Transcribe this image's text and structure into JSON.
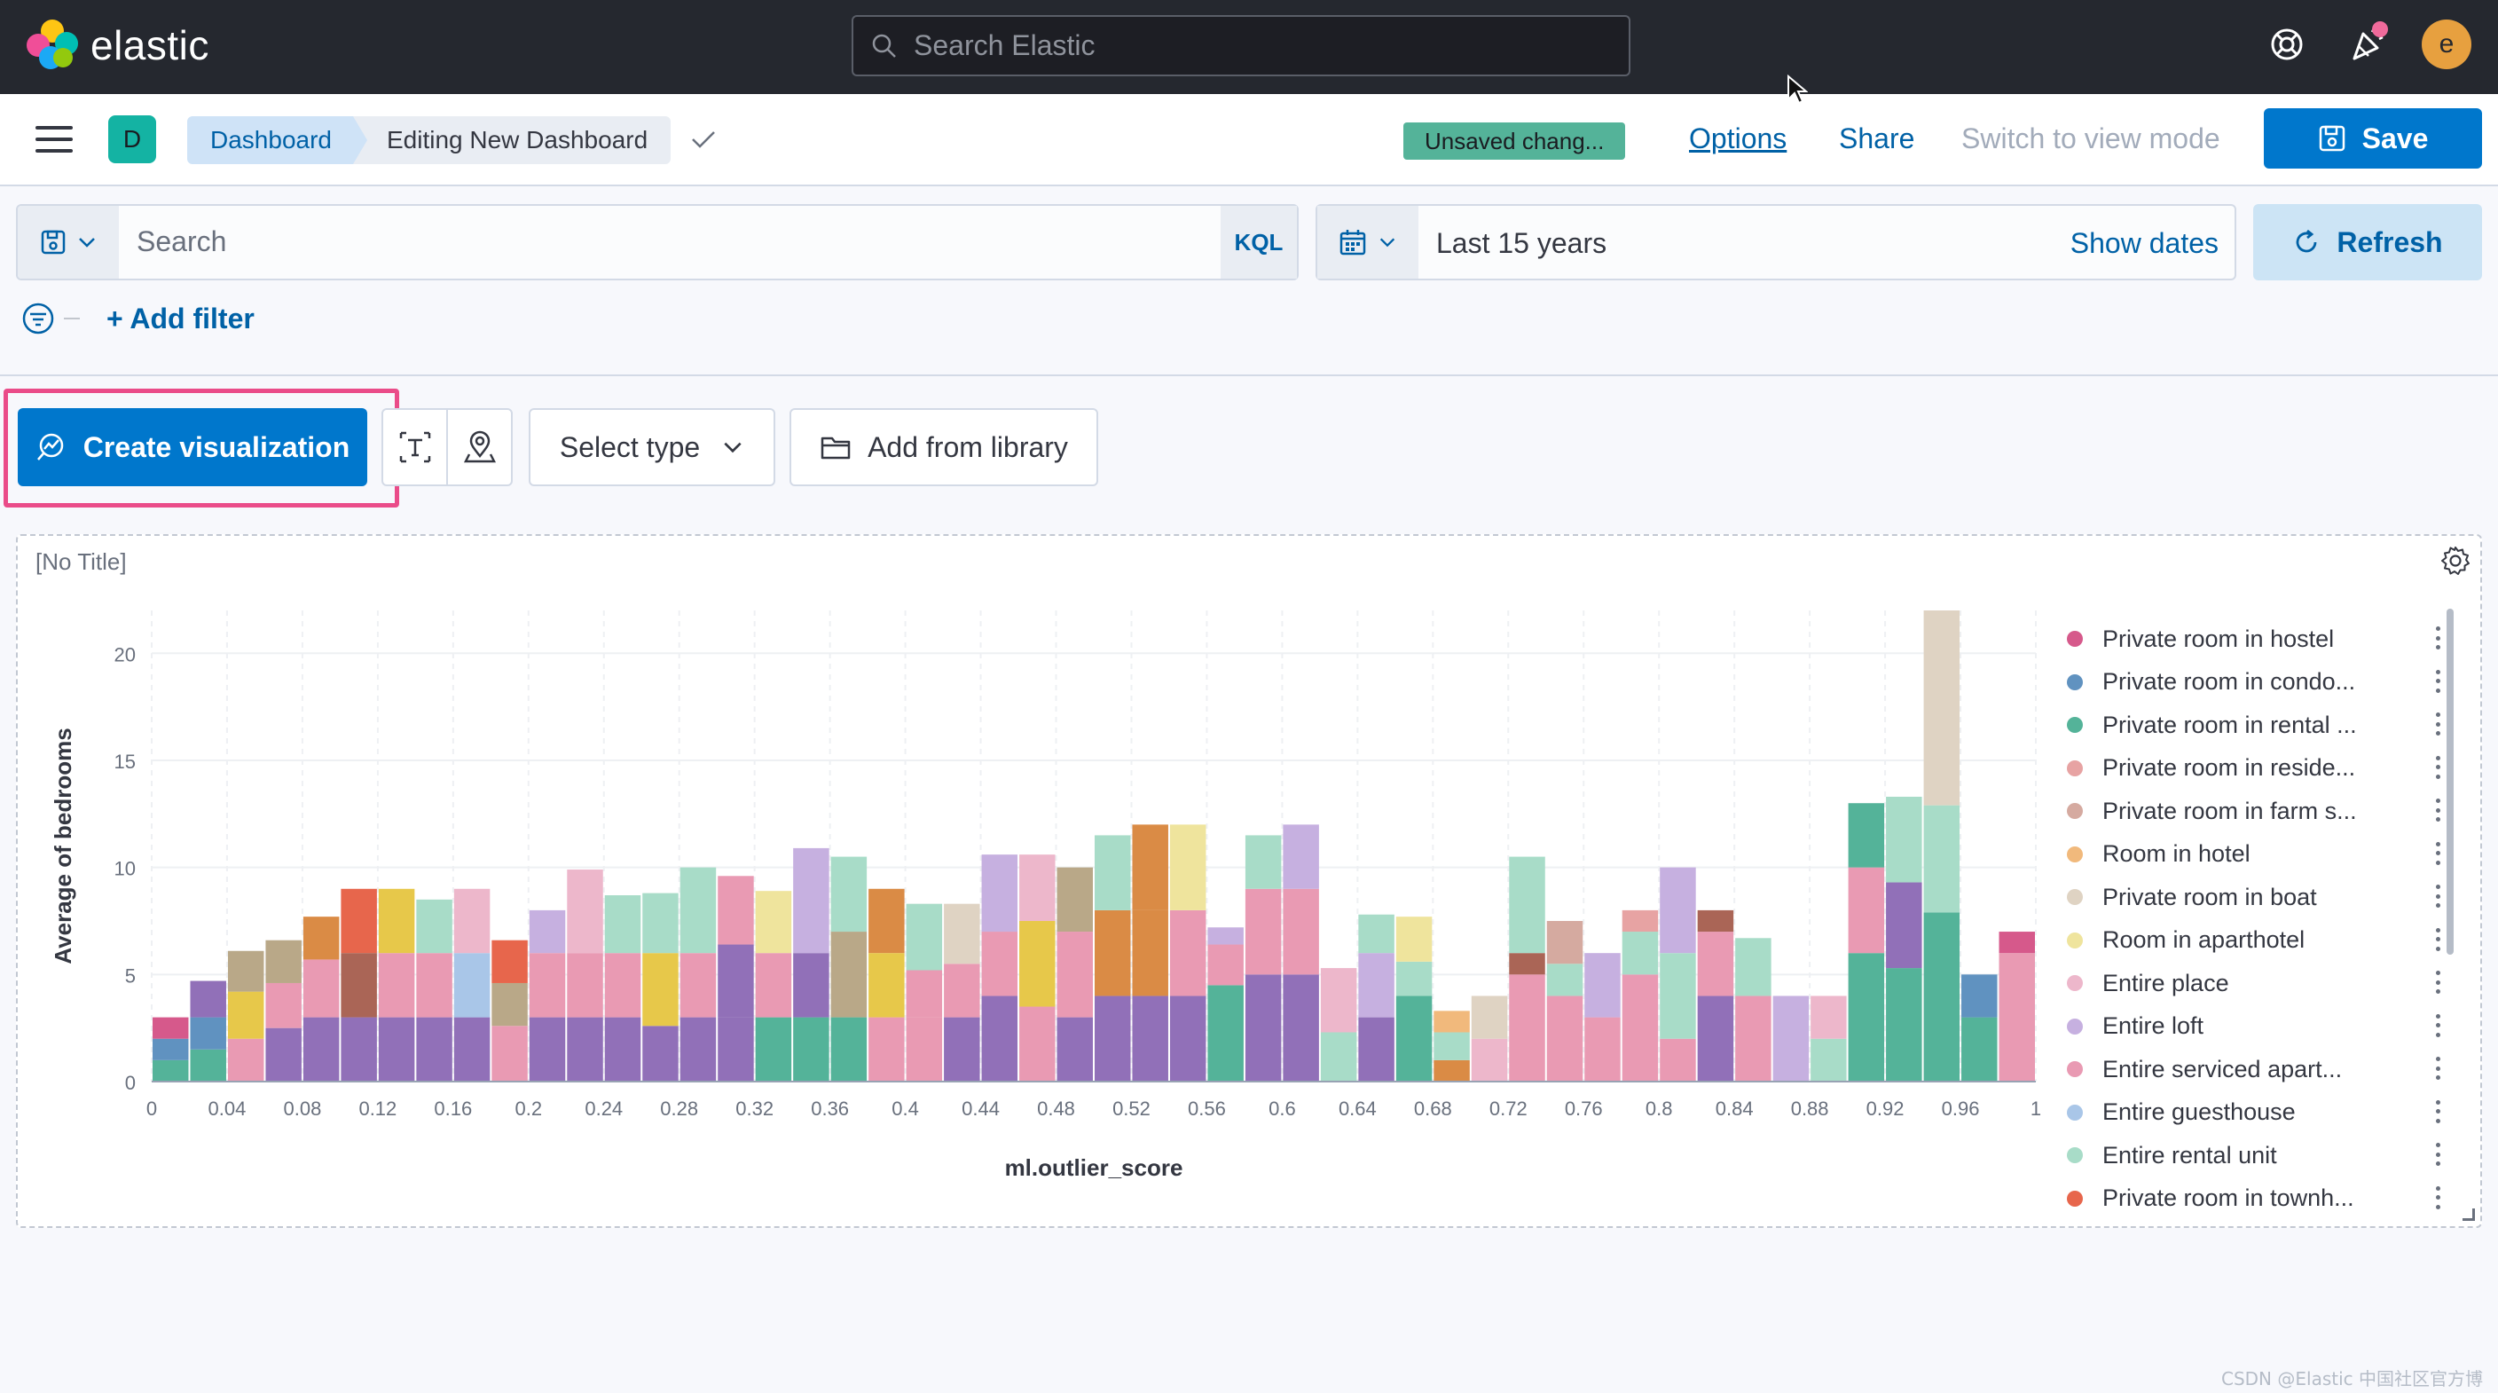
{
  "app": {
    "logo_text": "elastic",
    "search_placeholder": "Search Elastic",
    "avatar_letter": "e"
  },
  "header": {
    "space_letter": "D",
    "breadcrumbs": [
      "Dashboard",
      "Editing New Dashboard"
    ],
    "unsaved_badge": "Unsaved chang...",
    "options": "Options",
    "share": "Share",
    "switch_mode": "Switch to view mode",
    "save": "Save"
  },
  "query": {
    "placeholder": "Search",
    "language": "KQL",
    "time_range": "Last 15 years",
    "show_dates": "Show dates",
    "refresh": "Refresh",
    "add_filter": "+ Add filter"
  },
  "toolbar": {
    "create_visualization": "Create visualization",
    "select_type": "Select type",
    "add_from_library": "Add from library"
  },
  "panel": {
    "title": "[No Title]"
  },
  "legend": [
    {
      "label": "Private room in hostel",
      "color": "#d6598b"
    },
    {
      "label": "Private room in condo...",
      "color": "#6092c0"
    },
    {
      "label": "Private room in rental ...",
      "color": "#54b399"
    },
    {
      "label": "Private room in reside...",
      "color": "#e7a3a3"
    },
    {
      "label": "Private room in farm s...",
      "color": "#d5aaa0"
    },
    {
      "label": "Room in hotel",
      "color": "#f1b97c"
    },
    {
      "label": "Private room in boat",
      "color": "#dfd3c3"
    },
    {
      "label": "Room in aparthotel",
      "color": "#efe49d"
    },
    {
      "label": "Entire place",
      "color": "#edb7cb"
    },
    {
      "label": "Entire loft",
      "color": "#c6b0e0"
    },
    {
      "label": "Entire serviced apart...",
      "color": "#e99ab3"
    },
    {
      "label": "Entire guesthouse",
      "color": "#a9c6e8"
    },
    {
      "label": "Entire rental unit",
      "color": "#a8dcc8"
    },
    {
      "label": "Private room in townh...",
      "color": "#e7664c"
    }
  ],
  "watermark": "CSDN @Elastic 中国社区官方博客",
  "chart_data": {
    "type": "bar",
    "stacked": true,
    "xlabel": "ml.outlier_score",
    "ylabel": "Average of bedrooms",
    "xlim": [
      0,
      1
    ],
    "ylim": [
      0,
      22
    ],
    "x_ticks": [
      "0",
      "0.04",
      "0.08",
      "0.12",
      "0.16",
      "0.2",
      "0.24",
      "0.28",
      "0.32",
      "0.36",
      "0.4",
      "0.44",
      "0.48",
      "0.52",
      "0.56",
      "0.6",
      "0.64",
      "0.68",
      "0.72",
      "0.76",
      "0.8",
      "0.84",
      "0.88",
      "0.92",
      "0.96",
      "1"
    ],
    "y_ticks": [
      0,
      5,
      10,
      15,
      20
    ],
    "bin_width": 0.02,
    "bins": [
      {
        "x": 0.0,
        "segments": [
          {
            "v": 1,
            "c": "#54b399"
          },
          {
            "v": 1,
            "c": "#6092c0"
          },
          {
            "v": 1,
            "c": "#d6598b"
          }
        ]
      },
      {
        "x": 0.02,
        "segments": [
          {
            "v": 1.5,
            "c": "#54b399"
          },
          {
            "v": 1.5,
            "c": "#6092c0"
          },
          {
            "v": 1.7,
            "c": "#9170b8"
          }
        ]
      },
      {
        "x": 0.04,
        "segments": [
          {
            "v": 2,
            "c": "#e99ab3"
          },
          {
            "v": 2.2,
            "c": "#e7c84a"
          },
          {
            "v": 1.9,
            "c": "#b9a888"
          }
        ]
      },
      {
        "x": 0.06,
        "segments": [
          {
            "v": 2.5,
            "c": "#9170b8"
          },
          {
            "v": 2.1,
            "c": "#e99ab3"
          },
          {
            "v": 2,
            "c": "#b9a888"
          }
        ]
      },
      {
        "x": 0.08,
        "segments": [
          {
            "v": 3,
            "c": "#9170b8"
          },
          {
            "v": 2.7,
            "c": "#e99ab3"
          },
          {
            "v": 2,
            "c": "#da8b45"
          }
        ]
      },
      {
        "x": 0.1,
        "segments": [
          {
            "v": 3,
            "c": "#9170b8"
          },
          {
            "v": 3,
            "c": "#aa6556"
          },
          {
            "v": 3,
            "c": "#e7664c"
          }
        ]
      },
      {
        "x": 0.12,
        "segments": [
          {
            "v": 3,
            "c": "#9170b8"
          },
          {
            "v": 3,
            "c": "#e99ab3"
          },
          {
            "v": 3,
            "c": "#e7c84a"
          }
        ]
      },
      {
        "x": 0.14,
        "segments": [
          {
            "v": 3,
            "c": "#9170b8"
          },
          {
            "v": 3,
            "c": "#e99ab3"
          },
          {
            "v": 2.5,
            "c": "#a8dcc8"
          }
        ]
      },
      {
        "x": 0.16,
        "segments": [
          {
            "v": 3,
            "c": "#9170b8"
          },
          {
            "v": 3,
            "c": "#a9c6e8"
          },
          {
            "v": 3,
            "c": "#edb7cb"
          }
        ]
      },
      {
        "x": 0.18,
        "segments": [
          {
            "v": 2.6,
            "c": "#e99ab3"
          },
          {
            "v": 2,
            "c": "#b9a888"
          },
          {
            "v": 2,
            "c": "#e7664c"
          }
        ]
      },
      {
        "x": 0.2,
        "segments": [
          {
            "v": 3,
            "c": "#9170b8"
          },
          {
            "v": 3,
            "c": "#e99ab3"
          },
          {
            "v": 2,
            "c": "#c6b0e0"
          }
        ]
      },
      {
        "x": 0.22,
        "segments": [
          {
            "v": 3,
            "c": "#9170b8"
          },
          {
            "v": 3,
            "c": "#e99ab3"
          },
          {
            "v": 3.9,
            "c": "#edb7cb"
          }
        ]
      },
      {
        "x": 0.24,
        "segments": [
          {
            "v": 3,
            "c": "#9170b8"
          },
          {
            "v": 3,
            "c": "#e99ab3"
          },
          {
            "v": 2.7,
            "c": "#a8dcc8"
          }
        ]
      },
      {
        "x": 0.26,
        "segments": [
          {
            "v": 2.6,
            "c": "#9170b8"
          },
          {
            "v": 3.4,
            "c": "#e7c84a"
          },
          {
            "v": 2.8,
            "c": "#a8dcc8"
          }
        ]
      },
      {
        "x": 0.28,
        "segments": [
          {
            "v": 3,
            "c": "#9170b8"
          },
          {
            "v": 3,
            "c": "#e99ab3"
          },
          {
            "v": 4,
            "c": "#a8dcc8"
          }
        ]
      },
      {
        "x": 0.3,
        "segments": [
          {
            "v": 3,
            "c": "#9170b8"
          },
          {
            "v": 3.4,
            "c": "#9170b8"
          },
          {
            "v": 3.2,
            "c": "#e99ab3"
          }
        ]
      },
      {
        "x": 0.32,
        "segments": [
          {
            "v": 3,
            "c": "#54b399"
          },
          {
            "v": 3,
            "c": "#e99ab3"
          },
          {
            "v": 2.9,
            "c": "#efe49d"
          }
        ]
      },
      {
        "x": 0.34,
        "segments": [
          {
            "v": 3,
            "c": "#54b399"
          },
          {
            "v": 3,
            "c": "#9170b8"
          },
          {
            "v": 4.9,
            "c": "#c6b0e0"
          }
        ]
      },
      {
        "x": 0.36,
        "segments": [
          {
            "v": 3,
            "c": "#54b399"
          },
          {
            "v": 4,
            "c": "#b9a888"
          },
          {
            "v": 3.5,
            "c": "#a8dcc8"
          }
        ]
      },
      {
        "x": 0.38,
        "segments": [
          {
            "v": 3,
            "c": "#e99ab3"
          },
          {
            "v": 3,
            "c": "#e7c84a"
          },
          {
            "v": 3,
            "c": "#da8b45"
          }
        ]
      },
      {
        "x": 0.4,
        "segments": [
          {
            "v": 3,
            "c": "#e99ab3"
          },
          {
            "v": 2.2,
            "c": "#e99ab3"
          },
          {
            "v": 3.1,
            "c": "#a8dcc8"
          }
        ]
      },
      {
        "x": 0.42,
        "segments": [
          {
            "v": 3,
            "c": "#9170b8"
          },
          {
            "v": 2.5,
            "c": "#e99ab3"
          },
          {
            "v": 2.8,
            "c": "#dfd3c3"
          }
        ]
      },
      {
        "x": 0.44,
        "segments": [
          {
            "v": 4,
            "c": "#9170b8"
          },
          {
            "v": 3,
            "c": "#e99ab3"
          },
          {
            "v": 3.6,
            "c": "#c6b0e0"
          }
        ]
      },
      {
        "x": 0.46,
        "segments": [
          {
            "v": 3.5,
            "c": "#e99ab3"
          },
          {
            "v": 4,
            "c": "#e7c84a"
          },
          {
            "v": 3.1,
            "c": "#edb7cb"
          }
        ]
      },
      {
        "x": 0.48,
        "segments": [
          {
            "v": 3,
            "c": "#9170b8"
          },
          {
            "v": 4,
            "c": "#e99ab3"
          },
          {
            "v": 3,
            "c": "#b9a888"
          }
        ]
      },
      {
        "x": 0.5,
        "segments": [
          {
            "v": 4,
            "c": "#9170b8"
          },
          {
            "v": 4,
            "c": "#da8b45"
          },
          {
            "v": 3.5,
            "c": "#a8dcc8"
          }
        ]
      },
      {
        "x": 0.52,
        "segments": [
          {
            "v": 4,
            "c": "#9170b8"
          },
          {
            "v": 4,
            "c": "#da8b45"
          },
          {
            "v": 4,
            "c": "#da8b45"
          }
        ]
      },
      {
        "x": 0.54,
        "segments": [
          {
            "v": 4,
            "c": "#9170b8"
          },
          {
            "v": 4,
            "c": "#e99ab3"
          },
          {
            "v": 4,
            "c": "#efe49d"
          }
        ]
      },
      {
        "x": 0.56,
        "segments": [
          {
            "v": 4.5,
            "c": "#54b399"
          },
          {
            "v": 1.9,
            "c": "#e99ab3"
          },
          {
            "v": 0.8,
            "c": "#c6b0e0"
          }
        ]
      },
      {
        "x": 0.58,
        "segments": [
          {
            "v": 5,
            "c": "#9170b8"
          },
          {
            "v": 4,
            "c": "#e99ab3"
          },
          {
            "v": 2.5,
            "c": "#a8dcc8"
          }
        ]
      },
      {
        "x": 0.6,
        "segments": [
          {
            "v": 5,
            "c": "#9170b8"
          },
          {
            "v": 4,
            "c": "#e99ab3"
          },
          {
            "v": 3,
            "c": "#c6b0e0"
          }
        ]
      },
      {
        "x": 0.62,
        "segments": [
          {
            "v": 2.3,
            "c": "#a8dcc8"
          },
          {
            "v": 3,
            "c": "#edb7cb"
          }
        ]
      },
      {
        "x": 0.64,
        "segments": [
          {
            "v": 3,
            "c": "#9170b8"
          },
          {
            "v": 3,
            "c": "#c6b0e0"
          },
          {
            "v": 1.8,
            "c": "#a8dcc8"
          }
        ]
      },
      {
        "x": 0.66,
        "segments": [
          {
            "v": 4,
            "c": "#54b399"
          },
          {
            "v": 1.6,
            "c": "#a8dcc8"
          },
          {
            "v": 2.1,
            "c": "#efe49d"
          }
        ]
      },
      {
        "x": 0.68,
        "segments": [
          {
            "v": 1,
            "c": "#da8b45"
          },
          {
            "v": 1.3,
            "c": "#a8dcc8"
          },
          {
            "v": 1,
            "c": "#f1b97c"
          }
        ]
      },
      {
        "x": 0.7,
        "segments": [
          {
            "v": 2,
            "c": "#edb7cb"
          },
          {
            "v": 2,
            "c": "#dfd3c3"
          }
        ]
      },
      {
        "x": 0.72,
        "segments": [
          {
            "v": 5,
            "c": "#e99ab3"
          },
          {
            "v": 1,
            "c": "#aa6556"
          },
          {
            "v": 4.5,
            "c": "#a8dcc8"
          }
        ]
      },
      {
        "x": 0.74,
        "segments": [
          {
            "v": 4,
            "c": "#e99ab3"
          },
          {
            "v": 1.5,
            "c": "#a8dcc8"
          },
          {
            "v": 2,
            "c": "#d5aaa0"
          }
        ]
      },
      {
        "x": 0.76,
        "segments": [
          {
            "v": 3,
            "c": "#e99ab3"
          },
          {
            "v": 3,
            "c": "#c6b0e0"
          }
        ]
      },
      {
        "x": 0.78,
        "segments": [
          {
            "v": 5,
            "c": "#e99ab3"
          },
          {
            "v": 2,
            "c": "#a8dcc8"
          },
          {
            "v": 1,
            "c": "#e7a3a3"
          }
        ]
      },
      {
        "x": 0.8,
        "segments": [
          {
            "v": 2,
            "c": "#e99ab3"
          },
          {
            "v": 4,
            "c": "#a8dcc8"
          },
          {
            "v": 4,
            "c": "#c6b0e0"
          }
        ]
      },
      {
        "x": 0.82,
        "segments": [
          {
            "v": 4,
            "c": "#9170b8"
          },
          {
            "v": 3,
            "c": "#e99ab3"
          },
          {
            "v": 1,
            "c": "#aa6556"
          }
        ]
      },
      {
        "x": 0.84,
        "segments": [
          {
            "v": 4,
            "c": "#e99ab3"
          },
          {
            "v": 2.7,
            "c": "#a8dcc8"
          }
        ]
      },
      {
        "x": 0.86,
        "segments": [
          {
            "v": 4,
            "c": "#c6b0e0"
          }
        ]
      },
      {
        "x": 0.88,
        "segments": [
          {
            "v": 2,
            "c": "#a8dcc8"
          },
          {
            "v": 2,
            "c": "#edb7cb"
          }
        ]
      },
      {
        "x": 0.9,
        "segments": [
          {
            "v": 6,
            "c": "#54b399"
          },
          {
            "v": 4,
            "c": "#e99ab3"
          },
          {
            "v": 3,
            "c": "#54b399"
          }
        ]
      },
      {
        "x": 0.92,
        "segments": [
          {
            "v": 5.3,
            "c": "#54b399"
          },
          {
            "v": 4,
            "c": "#9170b8"
          },
          {
            "v": 4,
            "c": "#a8dcc8"
          }
        ]
      },
      {
        "x": 0.94,
        "segments": [
          {
            "v": 7.9,
            "c": "#54b399"
          },
          {
            "v": 5,
            "c": "#a8dcc8"
          },
          {
            "v": 9.1,
            "c": "#dfd3c3"
          }
        ]
      },
      {
        "x": 0.96,
        "segments": [
          {
            "v": 3,
            "c": "#54b399"
          },
          {
            "v": 2,
            "c": "#6092c0"
          }
        ]
      },
      {
        "x": 0.98,
        "segments": [
          {
            "v": 6,
            "c": "#e99ab3"
          },
          {
            "v": 1,
            "c": "#d6598b"
          }
        ]
      }
    ]
  }
}
